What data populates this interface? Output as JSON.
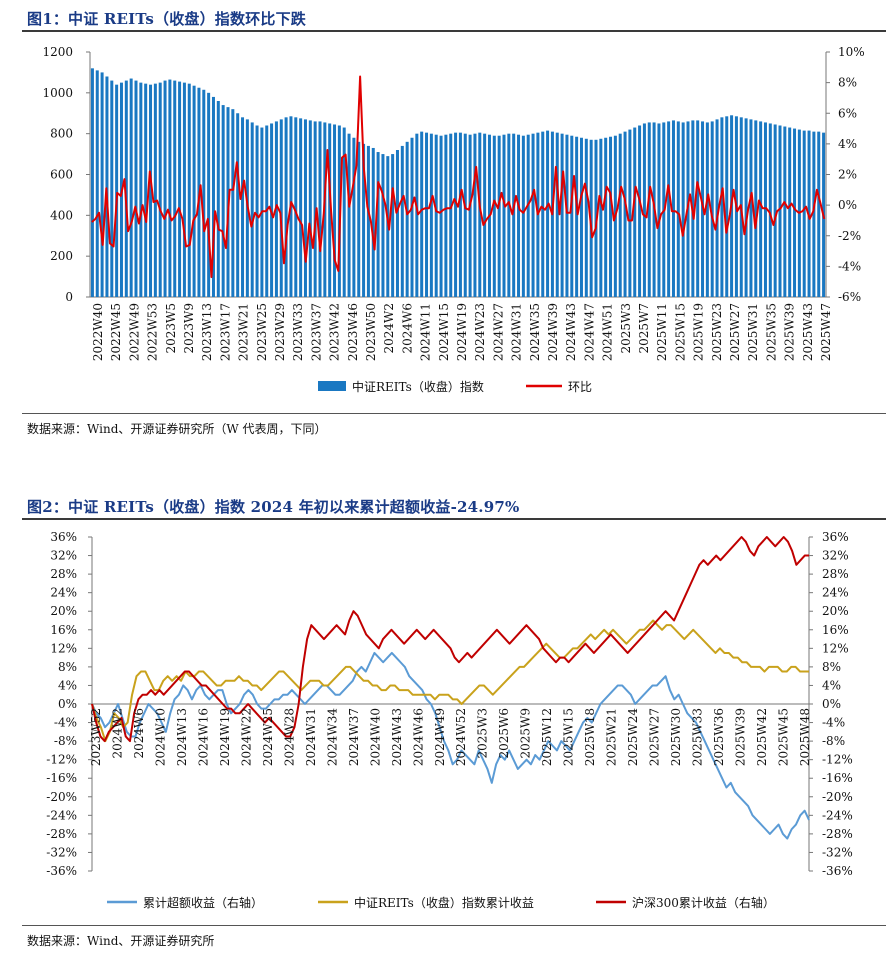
{
  "fig1": {
    "title": "图1：中证 REITs（收盘）指数环比下跌",
    "source": "数据来源：Wind、开源证券研究所（W 代表周，下同）"
  },
  "fig2": {
    "title": "图2：中证 REITs（收盘）指数 2024 年初以来累计超额收益-24.97%",
    "source": "数据来源：Wind、开源证券研究所"
  },
  "chart_data": [
    {
      "type": "bar",
      "title": "中证 REITs（收盘）指数环比下跌",
      "left_axis": {
        "ylim": [
          0,
          1200
        ],
        "ticks": [
          "0",
          "200",
          "400",
          "600",
          "800",
          "1000",
          "1200"
        ]
      },
      "right_axis": {
        "ylim": [
          -6,
          10
        ],
        "ticks": [
          "-6%",
          "-4%",
          "-2%",
          "0%",
          "2%",
          "4%",
          "6%",
          "8%",
          "10%"
        ]
      },
      "x_tick_labels": [
        "2022W40",
        "2022W45",
        "2022W49",
        "2022W53",
        "2023W5",
        "2023W9",
        "2023W13",
        "2023W17",
        "2023W21",
        "2023W25",
        "2023W29",
        "2023W33",
        "2023W37",
        "2023W42",
        "2023W46",
        "2023W50",
        "2024W2",
        "2024W6",
        "2024W11",
        "2024W15",
        "2024W19",
        "2024W23",
        "2024W27",
        "2024W31",
        "2024W35",
        "2024W39",
        "2024W43",
        "2024W47",
        "2024W51",
        "2025W3",
        "2025W7",
        "2025W11",
        "2025W15",
        "2025W19",
        "2025W23",
        "2025W27",
        "2025W31",
        "2025W35",
        "2025W39",
        "2025W43",
        "2025W47"
      ],
      "legend": [
        "中证REITs（收盘）指数",
        "环比"
      ],
      "colors": {
        "bar": "#1a78c2",
        "line": "#e00000"
      },
      "series": [
        {
          "name": "中证REITs（收盘）指数",
          "axis": "left",
          "kind": "bar",
          "values": [
            1120,
            1110,
            1100,
            1080,
            1060,
            1040,
            1050,
            1060,
            1070,
            1060,
            1050,
            1045,
            1040,
            1045,
            1050,
            1060,
            1065,
            1060,
            1055,
            1050,
            1045,
            1035,
            1025,
            1015,
            1000,
            980,
            960,
            940,
            930,
            920,
            900,
            880,
            870,
            855,
            840,
            830,
            840,
            850,
            860,
            870,
            880,
            885,
            880,
            875,
            870,
            865,
            860,
            860,
            855,
            850,
            845,
            840,
            830,
            800,
            780,
            760,
            750,
            740,
            730,
            710,
            700,
            690,
            700,
            720,
            740,
            760,
            780,
            800,
            810,
            805,
            800,
            795,
            790,
            795,
            800,
            805,
            805,
            800,
            795,
            800,
            805,
            800,
            795,
            790,
            790,
            795,
            800,
            800,
            795,
            790,
            795,
            800,
            805,
            810,
            815,
            810,
            805,
            800,
            795,
            790,
            785,
            780,
            775,
            770,
            770,
            775,
            780,
            785,
            790,
            800,
            810,
            820,
            830,
            840,
            850,
            855,
            855,
            850,
            855,
            860,
            865,
            860,
            855,
            860,
            865,
            865,
            860,
            855,
            860,
            870,
            880,
            885,
            890,
            885,
            880,
            875,
            870,
            865,
            860,
            855,
            850,
            845,
            840,
            835,
            830,
            825,
            820,
            815,
            815,
            810,
            810,
            805
          ]
        },
        {
          "name": "环比",
          "axis": "right",
          "kind": "line",
          "values": [
            -1.1,
            -0.9,
            -0.5,
            -2.6,
            1.1,
            -2.5,
            -2.7,
            0.8,
            0.6,
            1.7,
            -1.7,
            -1.1,
            -0.1,
            -1.2,
            0.0,
            -1.1,
            2.2,
            0.2,
            0.3,
            -0.4,
            -0.9,
            -0.3,
            -1.0,
            -0.7,
            -0.2,
            -0.9,
            -2.7,
            -2.6,
            -1.0,
            -0.6,
            1.3,
            -1.7,
            -0.9,
            -4.7,
            -0.4,
            -1.6,
            -1.7,
            -2.8,
            1.0,
            1.0,
            2.8,
            0.4,
            1.6,
            -0.1,
            -1.4,
            -0.5,
            -0.8,
            -0.4,
            -0.4,
            -0.1,
            -0.8,
            0.0,
            -0.5,
            -3.8,
            -1.3,
            0.2,
            -0.3,
            -0.9,
            -1.3,
            -3.7,
            -1.2,
            -2.8,
            -0.2,
            -3.0,
            -0.5,
            3.6,
            -0.4,
            -3.6,
            -4.3,
            3.1,
            3.3,
            -0.1,
            1.2,
            2.6,
            8.4,
            2.5,
            -0.1,
            -1.1,
            -2.9,
            1.5,
            0.9,
            0.0,
            -1.6,
            1.1,
            -0.5,
            0.1,
            0.6,
            -0.6,
            -0.3,
            0.5,
            -0.6,
            -0.3,
            -0.2,
            -0.2,
            0.6,
            -0.4,
            -0.5,
            -0.3,
            -0.2,
            -0.2,
            0.4,
            -0.1,
            1.0,
            -0.2,
            -0.3,
            0.7,
            2.5,
            -0.1,
            -1.3,
            -0.9,
            -0.6,
            0.3,
            -0.2,
            0.8,
            -0.1,
            0.2,
            -0.6,
            0.6,
            -0.3,
            -0.5,
            -0.1,
            0.3,
            1.0,
            -0.6,
            -0.1,
            -0.3,
            0.1,
            -0.6,
            2.5,
            -0.6,
            2.2,
            -0.5,
            -0.5,
            1.9,
            -0.6,
            0.6,
            1.4,
            0.2,
            -2.1,
            -1.5,
            0.6,
            -0.3,
            1.2,
            0.8,
            -1.0,
            -0.2,
            1.2,
            0.4,
            -1.0,
            -1.0,
            1.2,
            0.4,
            -0.6,
            -0.8,
            1.2,
            0.1,
            -1.5,
            -0.6,
            -0.3,
            1.3,
            -0.4,
            -0.4,
            -0.6,
            -2.0,
            -0.6,
            0.7,
            -0.9,
            1.5,
            0.5,
            -0.6,
            0.7,
            -0.7,
            -1.6,
            -0.1,
            1.1,
            -1.8,
            -0.6,
            1.0,
            -0.4,
            0.0,
            -1.9,
            -0.3,
            0.8,
            -1.5,
            0.3,
            -0.2,
            -0.2,
            -0.5,
            -1.3,
            -0.4,
            -0.2,
            0.2,
            -0.2,
            0.1,
            -0.3,
            -0.5,
            -0.4,
            -0.1,
            -0.9,
            -0.4,
            1.0,
            0.1,
            -0.9
          ]
        }
      ]
    },
    {
      "type": "line",
      "title": "中证 REITs（收盘）指数 2024 年初以来累计超额收益-24.97%",
      "left_axis": {
        "ylim": [
          -36,
          36
        ],
        "ticks": [
          "-36%",
          "-32%",
          "-28%",
          "-24%",
          "-20%",
          "-16%",
          "-12%",
          "-8%",
          "-4%",
          "0%",
          "4%",
          "8%",
          "12%",
          "16%",
          "20%",
          "24%",
          "28%",
          "32%",
          "36%"
        ]
      },
      "right_axis": {
        "ylim": [
          -36,
          36
        ],
        "ticks": [
          "-36%",
          "-32%",
          "-28%",
          "-24%",
          "-20%",
          "-16%",
          "-12%",
          "-8%",
          "-4%",
          "0%",
          "4%",
          "8%",
          "12%",
          "16%",
          "20%",
          "24%",
          "28%",
          "32%",
          "36%"
        ]
      },
      "x_tick_labels": [
        "2023W52",
        "2024W2",
        "2024W6",
        "2024W10",
        "2024W13",
        "2024W16",
        "2024W19",
        "2024W22",
        "2024W25",
        "2024W28",
        "2024W31",
        "2024W34",
        "2024W37",
        "2024W40",
        "2024W43",
        "2024W46",
        "2024W49",
        "2024W52",
        "2025W3",
        "2025W6",
        "2025W9",
        "2025W12",
        "2025W15",
        "2025W18",
        "2025W21",
        "2025W24",
        "2025W27",
        "2025W30",
        "2025W33",
        "2025W36",
        "2025W39",
        "2025W42",
        "2025W45",
        "2025W48"
      ],
      "legend": [
        "累计超额收益（右轴）",
        "中证REITs（收盘）指数累计收益",
        "沪深300累计收益（右轴）"
      ],
      "colors": [
        "#5b9bd5",
        "#c9a21c",
        "#c00000"
      ],
      "series": [
        {
          "name": "累计超额收益（右轴）",
          "axis": "right",
          "values": [
            0,
            -2,
            -3,
            -5,
            -4,
            -2,
            0,
            -3,
            -6,
            -7,
            -7,
            -4,
            -2,
            0,
            -1,
            -2,
            -4,
            -6,
            -2,
            1,
            2,
            4,
            3,
            1,
            3,
            4,
            2,
            1,
            2,
            3,
            3,
            0,
            -2,
            -1,
            0,
            2,
            3,
            2,
            0,
            -1,
            -1,
            0,
            1,
            1,
            2,
            2,
            3,
            2,
            1,
            0,
            1,
            2,
            3,
            4,
            4,
            3,
            2,
            2,
            3,
            4,
            5,
            7,
            8,
            7,
            9,
            11,
            10,
            9,
            10,
            11,
            10,
            9,
            8,
            6,
            5,
            4,
            3,
            1,
            0,
            -2,
            -5,
            -8,
            -10,
            -13,
            -12,
            -10,
            -11,
            -12,
            -13,
            -10,
            -12,
            -14,
            -17,
            -13,
            -11,
            -12,
            -10,
            -12,
            -14,
            -13,
            -12,
            -13,
            -11,
            -12,
            -10,
            -8,
            -9,
            -10,
            -8,
            -9,
            -10,
            -8,
            -6,
            -4,
            -3,
            -4,
            -2,
            0,
            1,
            2,
            3,
            4,
            4,
            3,
            2,
            0,
            1,
            2,
            3,
            4,
            4,
            5,
            6,
            3,
            1,
            2,
            0,
            -2,
            -3,
            -4,
            -6,
            -8,
            -10,
            -12,
            -14,
            -16,
            -18,
            -17,
            -19,
            -20,
            -21,
            -22,
            -24,
            -25,
            -26,
            -27,
            -28,
            -27,
            -26,
            -28,
            -29,
            -27,
            -26,
            -24,
            -23,
            -25
          ]
        },
        {
          "name": "中证REITs（收盘）指数累计收益",
          "axis": "left",
          "values": [
            0,
            -3,
            -5,
            -8,
            -6,
            -2,
            -3,
            -5,
            -4,
            2,
            6,
            7,
            7,
            5,
            3,
            3,
            5,
            6,
            5,
            6,
            5,
            7,
            6,
            6,
            7,
            7,
            6,
            5,
            4,
            4,
            5,
            5,
            5,
            6,
            5,
            5,
            4,
            4,
            3,
            4,
            5,
            6,
            7,
            7,
            6,
            5,
            4,
            3,
            4,
            5,
            5,
            5,
            4,
            4,
            5,
            6,
            7,
            8,
            8,
            7,
            6,
            5,
            5,
            4,
            4,
            3,
            3,
            4,
            4,
            3,
            3,
            3,
            2,
            2,
            2,
            2,
            2,
            1,
            2,
            2,
            2,
            1,
            1,
            0,
            1,
            2,
            3,
            4,
            4,
            3,
            2,
            3,
            4,
            5,
            6,
            7,
            8,
            8,
            9,
            10,
            11,
            12,
            13,
            12,
            11,
            10,
            10,
            11,
            12,
            12,
            13,
            14,
            15,
            14,
            15,
            16,
            15,
            16,
            15,
            14,
            13,
            14,
            15,
            16,
            16,
            17,
            18,
            17,
            16,
            17,
            17,
            16,
            15,
            14,
            15,
            16,
            15,
            14,
            13,
            12,
            11,
            12,
            11,
            11,
            10,
            10,
            9,
            9,
            8,
            8,
            8,
            7,
            8,
            8,
            8,
            7,
            7,
            8,
            8,
            7,
            7,
            7
          ]
        },
        {
          "name": "沪深300累计收益（右轴）",
          "axis": "right",
          "values": [
            0,
            -4,
            -7,
            -8,
            -6,
            -5,
            -4,
            -3,
            -7,
            -8,
            -2,
            1,
            2,
            2,
            3,
            2,
            3,
            2,
            3,
            4,
            5,
            6,
            7,
            7,
            6,
            5,
            4,
            4,
            3,
            2,
            1,
            0,
            -1,
            -1,
            -2,
            -2,
            -1,
            0,
            -1,
            -2,
            -3,
            -4,
            -3,
            -4,
            -5,
            -6,
            -7,
            -7,
            -5,
            0,
            8,
            14,
            17,
            16,
            15,
            14,
            15,
            16,
            17,
            16,
            15,
            18,
            20,
            19,
            17,
            15,
            14,
            13,
            12,
            14,
            15,
            16,
            15,
            14,
            13,
            14,
            15,
            16,
            15,
            14,
            15,
            16,
            15,
            14,
            13,
            12,
            10,
            9,
            10,
            11,
            10,
            11,
            12,
            13,
            14,
            15,
            16,
            15,
            14,
            13,
            14,
            15,
            16,
            17,
            16,
            15,
            14,
            12,
            11,
            10,
            9,
            10,
            10,
            9,
            10,
            11,
            12,
            13,
            12,
            11,
            12,
            13,
            14,
            15,
            14,
            13,
            12,
            11,
            12,
            13,
            14,
            15,
            16,
            17,
            18,
            19,
            20,
            19,
            18,
            20,
            22,
            24,
            26,
            28,
            30,
            31,
            30,
            31,
            32,
            31,
            32,
            33,
            34,
            35,
            36,
            35,
            33,
            32,
            34,
            35,
            36,
            35,
            34,
            35,
            36,
            35,
            33,
            30,
            31,
            32,
            32
          ]
        }
      ]
    }
  ]
}
